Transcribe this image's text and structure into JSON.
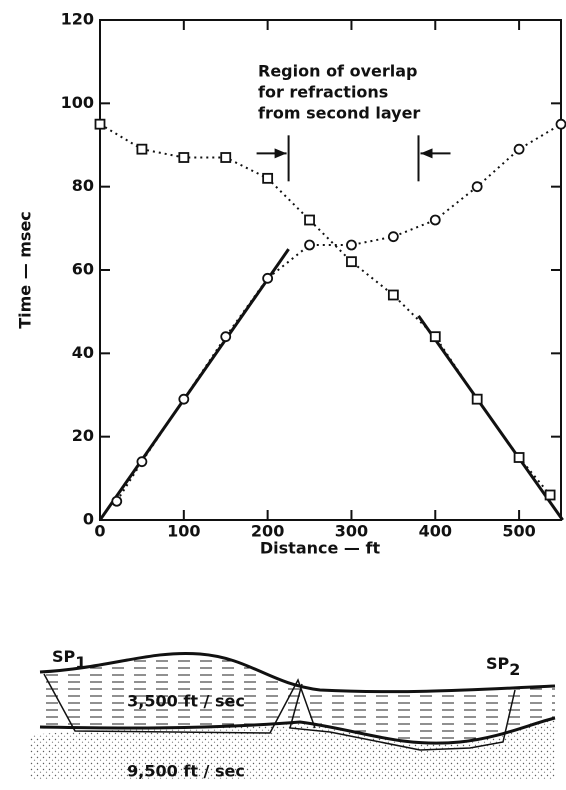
{
  "chart_data": {
    "type": "scatter",
    "xlabel": "Distance — ft",
    "ylabel": "Time — msec",
    "annotation": [
      "Region of overlap",
      "for refractions",
      "from second layer"
    ],
    "overlap_x": [
      225,
      380
    ],
    "xlim": [
      0,
      550
    ],
    "ylim": [
      0,
      120
    ],
    "xticks": [
      0,
      100,
      200,
      300,
      400,
      500
    ],
    "yticks": [
      0,
      20,
      40,
      60,
      80,
      100,
      120
    ],
    "series": [
      {
        "marker": "circle",
        "color": "#111111",
        "x": [
          20,
          50,
          100,
          150,
          200,
          250,
          300,
          350,
          400,
          450,
          500,
          550
        ],
        "values": [
          4.5,
          14,
          29,
          44,
          58,
          66,
          66,
          68,
          72,
          80,
          89,
          95
        ]
      },
      {
        "marker": "square",
        "color": "#111111",
        "x": [
          0,
          50,
          100,
          150,
          200,
          250,
          300,
          350,
          400,
          450,
          500,
          537
        ],
        "values": [
          95,
          89,
          87,
          87,
          82,
          72,
          62,
          54,
          44,
          29,
          15,
          6
        ]
      }
    ],
    "fits": [
      {
        "x": [
          0,
          225
        ],
        "values": [
          0,
          65
        ]
      },
      {
        "x": [
          380,
          552
        ],
        "values": [
          49,
          0
        ]
      }
    ]
  },
  "diagram": {
    "sp1": {
      "text": "SP",
      "sub": "1"
    },
    "sp2": {
      "text": "SP",
      "sub": "2"
    },
    "upper_velocity": "3,500 ft / sec",
    "lower_velocity": "9,500 ft / sec"
  }
}
